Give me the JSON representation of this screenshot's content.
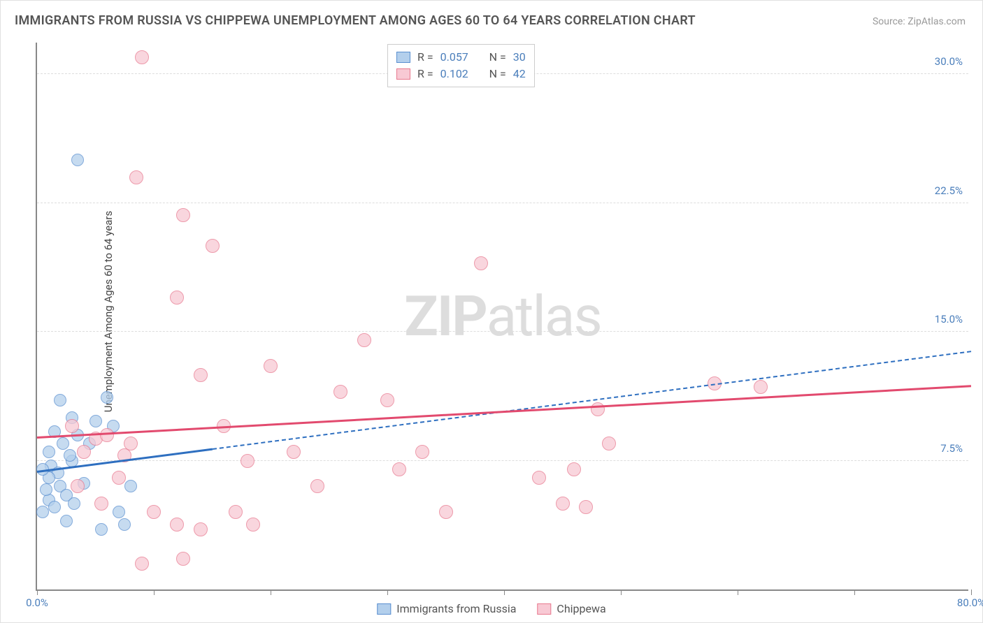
{
  "title": "IMMIGRANTS FROM RUSSIA VS CHIPPEWA UNEMPLOYMENT AMONG AGES 60 TO 64 YEARS CORRELATION CHART",
  "source": "Source: ZipAtlas.com",
  "watermark_bold": "ZIP",
  "watermark_rest": "atlas",
  "y_axis_label": "Unemployment Among Ages 60 to 64 years",
  "chart": {
    "type": "scatter",
    "background_color": "#ffffff",
    "grid_color": "#dddddd",
    "axis_color": "#888888",
    "xlim": [
      0,
      80
    ],
    "ylim": [
      0,
      32
    ],
    "x_ticks": [
      0,
      10,
      20,
      30,
      40,
      50,
      60,
      70,
      80
    ],
    "x_tick_labels": {
      "0": "0.0%",
      "80": "80.0%"
    },
    "y_ticks": [
      7.5,
      15.0,
      22.5,
      30.0
    ],
    "y_tick_labels": [
      "7.5%",
      "15.0%",
      "22.5%",
      "30.0%"
    ],
    "tick_label_color": "#4a7ebb",
    "series": [
      {
        "name": "Immigrants from Russia",
        "color_fill": "#b3cfec",
        "color_stroke": "#5a8fd0",
        "marker_radius": 9,
        "marker_opacity": 0.75,
        "r_value": "0.057",
        "n_value": "30",
        "trend": {
          "x1": 0,
          "y1": 6.8,
          "x2": 80,
          "y2": 13.8,
          "solid_until_x": 15,
          "color": "#2e6fc0",
          "width": 3,
          "dash_width": 2
        },
        "points": [
          [
            1.0,
            5.2
          ],
          [
            1.5,
            4.8
          ],
          [
            2.0,
            6.0
          ],
          [
            1.2,
            7.2
          ],
          [
            0.8,
            5.8
          ],
          [
            2.5,
            5.5
          ],
          [
            1.8,
            6.8
          ],
          [
            3.0,
            7.5
          ],
          [
            1.0,
            8.0
          ],
          [
            2.2,
            8.5
          ],
          [
            3.5,
            9.0
          ],
          [
            0.5,
            4.5
          ],
          [
            4.0,
            6.2
          ],
          [
            5.0,
            9.8
          ],
          [
            6.0,
            11.2
          ],
          [
            2.0,
            11.0
          ],
          [
            3.0,
            10.0
          ],
          [
            7.0,
            4.5
          ],
          [
            8.0,
            6.0
          ],
          [
            3.5,
            25.0
          ],
          [
            6.5,
            9.5
          ],
          [
            1.5,
            9.2
          ],
          [
            2.8,
            7.8
          ],
          [
            4.5,
            8.5
          ],
          [
            5.5,
            3.5
          ],
          [
            7.5,
            3.8
          ],
          [
            1.0,
            6.5
          ],
          [
            2.5,
            4.0
          ],
          [
            3.2,
            5.0
          ],
          [
            0.5,
            7.0
          ]
        ]
      },
      {
        "name": "Chippewa",
        "color_fill": "#f8c9d4",
        "color_stroke": "#e8798f",
        "marker_radius": 10,
        "marker_opacity": 0.75,
        "r_value": "0.102",
        "n_value": "42",
        "trend": {
          "x1": 0,
          "y1": 8.8,
          "x2": 80,
          "y2": 11.8,
          "solid_until_x": 80,
          "color": "#e24a6e",
          "width": 3
        },
        "points": [
          [
            9.0,
            31.0
          ],
          [
            8.5,
            24.0
          ],
          [
            12.5,
            21.8
          ],
          [
            15.0,
            20.0
          ],
          [
            12.0,
            17.0
          ],
          [
            5.0,
            8.8
          ],
          [
            6.0,
            9.0
          ],
          [
            8.0,
            8.5
          ],
          [
            14.0,
            12.5
          ],
          [
            18.0,
            7.5
          ],
          [
            20.0,
            13.0
          ],
          [
            22.0,
            8.0
          ],
          [
            26.0,
            11.5
          ],
          [
            28.0,
            14.5
          ],
          [
            30.0,
            11.0
          ],
          [
            33.0,
            8.0
          ],
          [
            31.0,
            7.0
          ],
          [
            38.0,
            19.0
          ],
          [
            48.0,
            10.5
          ],
          [
            49.0,
            8.5
          ],
          [
            45.0,
            5.0
          ],
          [
            46.0,
            7.0
          ],
          [
            43.0,
            6.5
          ],
          [
            62.0,
            11.8
          ],
          [
            58.0,
            12.0
          ],
          [
            3.0,
            9.5
          ],
          [
            4.0,
            8.0
          ],
          [
            7.0,
            6.5
          ],
          [
            10.0,
            4.5
          ],
          [
            12.0,
            3.8
          ],
          [
            9.0,
            1.5
          ],
          [
            12.5,
            1.8
          ],
          [
            14.0,
            3.5
          ],
          [
            17.0,
            4.5
          ],
          [
            7.5,
            7.8
          ],
          [
            5.5,
            5.0
          ],
          [
            16.0,
            9.5
          ],
          [
            18.5,
            3.8
          ],
          [
            24.0,
            6.0
          ],
          [
            35.0,
            4.5
          ],
          [
            3.5,
            6.0
          ],
          [
            47.0,
            4.8
          ]
        ]
      }
    ]
  },
  "legend_top": {
    "r_label": "R =",
    "n_label": "N ="
  },
  "bottom_legend": {
    "series1": "Immigrants from Russia",
    "series2": "Chippewa"
  }
}
